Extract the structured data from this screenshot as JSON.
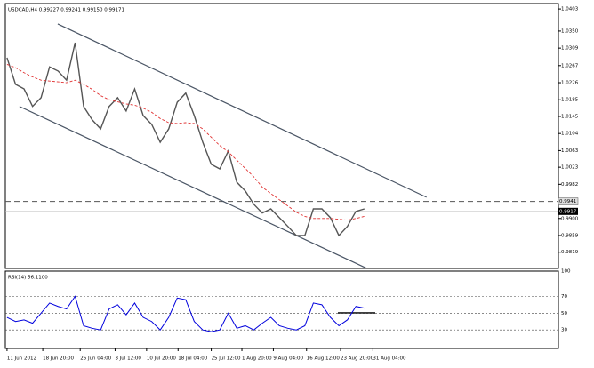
{
  "chart_data": {
    "type": "line",
    "title": "USDCAD,H4  0.99227  0.99241  0.99150  0.99171",
    "xlim": [
      -0.2,
      64.8
    ],
    "xticks": [
      {
        "value": 0,
        "label": "11 Jun 2012"
      },
      {
        "value": 4.2,
        "label": "18 Jun 20:00"
      },
      {
        "value": 8.6,
        "label": "26 Jun 04:00"
      },
      {
        "value": 12.7,
        "label": "3 Jul 12:00"
      },
      {
        "value": 16.4,
        "label": "10 Jul 20:00"
      },
      {
        "value": 20.1,
        "label": "18 Jul 04:00"
      },
      {
        "value": 24,
        "label": "25 Jul 12:00"
      },
      {
        "value": 27.6,
        "label": "1 Aug 20:00"
      },
      {
        "value": 31.3,
        "label": "9 Aug 04:00"
      },
      {
        "value": 35.2,
        "label": "16 Aug 12:00"
      },
      {
        "value": 39.2,
        "label": "23 Aug 20:00"
      },
      {
        "value": 43,
        "label": "31 Aug 04:00"
      }
    ],
    "ylim": [
      0.978,
      1.0416
    ],
    "yticks": [
      {
        "value": 1.0403,
        "label": "1.0403"
      },
      {
        "value": 1.035,
        "label": "1.0350"
      },
      {
        "value": 1.0309,
        "label": "1.0309"
      },
      {
        "value": 1.0267,
        "label": "1.0267"
      },
      {
        "value": 1.0226,
        "label": "1.0226"
      },
      {
        "value": 1.0185,
        "label": "1.0185"
      },
      {
        "value": 1.0145,
        "label": "1.0145"
      },
      {
        "value": 1.0104,
        "label": "1.0104"
      },
      {
        "value": 1.0063,
        "label": "1.0063"
      },
      {
        "value": 1.0023,
        "label": "1.0023"
      },
      {
        "value": 0.9982,
        "label": "0.9982"
      },
      {
        "value": 0.99,
        "label": "0.9900"
      },
      {
        "value": 0.9859,
        "label": "0.9859"
      },
      {
        "value": 0.9819,
        "label": "0.9819"
      }
    ],
    "level": {
      "value": 0.9941,
      "label": "0.9941"
    },
    "price": {
      "value": 0.9917,
      "label": "0.9917"
    },
    "series": [
      {
        "name": "USDCAD,H4",
        "color": "#555555",
        "values": [
          1.0286,
          1.0222,
          1.0211,
          1.0169,
          1.019,
          1.0264,
          1.0254,
          1.0232,
          1.0322,
          1.0169,
          1.0137,
          1.0115,
          1.0169,
          1.019,
          1.0158,
          1.0211,
          1.0147,
          1.0126,
          1.0083,
          1.0115,
          1.0179,
          1.0201,
          1.0147,
          1.0083,
          1.003,
          1.0019,
          1.0062,
          0.9987,
          0.9966,
          0.9934,
          0.9913,
          0.9923,
          0.9902,
          0.9881,
          0.9859,
          0.9859,
          0.9923,
          0.9923,
          0.9902,
          0.9859,
          0.9881,
          0.9917,
          0.9923
        ]
      },
      {
        "name": "MA",
        "color": "#e03030",
        "values": [
          1.027,
          1.0262,
          1.025,
          1.024,
          1.0232,
          1.023,
          1.0228,
          1.0226,
          1.0232,
          1.0222,
          1.021,
          1.0195,
          1.0185,
          1.018,
          1.0175,
          1.0172,
          1.0165,
          1.0155,
          1.014,
          1.013,
          1.0128,
          1.013,
          1.0128,
          1.0115,
          1.0095,
          1.0075,
          1.006,
          1.004,
          1.002,
          1.0,
          0.9975,
          0.996,
          0.9945,
          0.993,
          0.9915,
          0.9905,
          0.99,
          0.99,
          0.99,
          0.9898,
          0.9896,
          0.99,
          0.9905
        ]
      }
    ],
    "channel": [
      {
        "x": [
          5.96,
          49.3
        ],
        "values": [
          1.0367,
          0.9951
        ]
      },
      {
        "x": [
          1.46,
          42.2
        ],
        "values": [
          1.0169,
          0.9781
        ]
      }
    ],
    "rsi": {
      "label": "RSI(14) 56.1100",
      "color": "#0000dd",
      "ylim": [
        8,
        100
      ],
      "yticks": [
        100,
        70,
        50,
        30
      ],
      "values": [
        45,
        40,
        42,
        38,
        50,
        62,
        58,
        55,
        70,
        35,
        32,
        30,
        55,
        60,
        48,
        62,
        45,
        40,
        30,
        45,
        68,
        66,
        40,
        30,
        28,
        30,
        50,
        32,
        35,
        30,
        38,
        45,
        35,
        32,
        30,
        35,
        62,
        60,
        45,
        35,
        42,
        58,
        56
      ]
    }
  }
}
